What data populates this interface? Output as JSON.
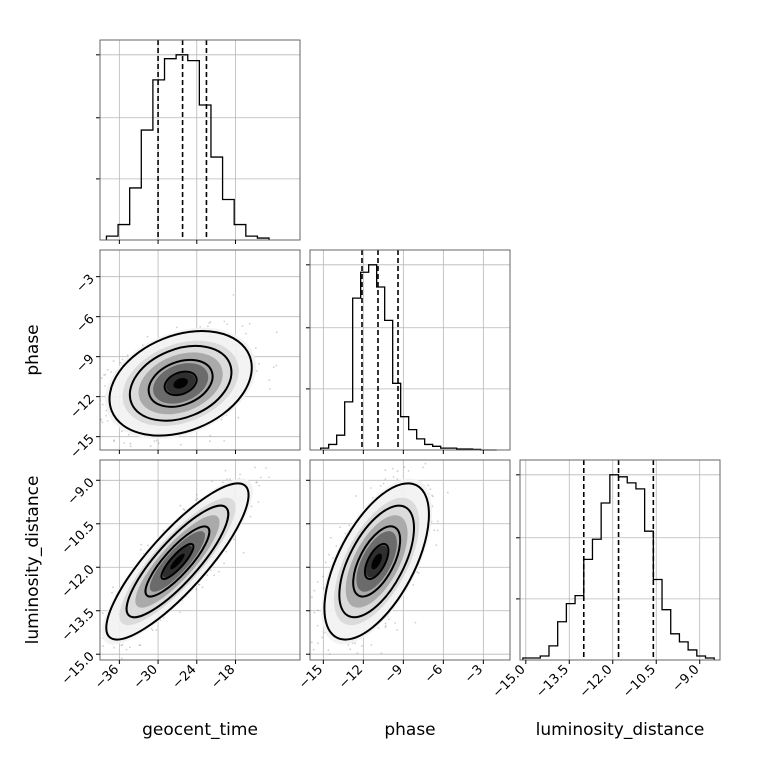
{
  "chart_data": {
    "type": "corner",
    "parameters": [
      "geocent_time",
      "phase",
      "luminosity_distance"
    ],
    "axes": {
      "geocent_time": {
        "range": [
          -39,
          -8
        ],
        "ticks": [
          -36,
          -30,
          -24,
          -18
        ],
        "tick_labels": [
          "−36",
          "−30",
          "−24",
          "−18"
        ]
      },
      "phase": {
        "range": [
          -16,
          -1
        ],
        "ticks": [
          -15,
          -12,
          -9,
          -6,
          -3
        ],
        "tick_labels": [
          "−15",
          "−12",
          "−9",
          "−6",
          "−3"
        ]
      },
      "luminosity_distance": {
        "range": [
          -15.2,
          -8.3
        ],
        "ticks": [
          -15.0,
          -13.5,
          -12.0,
          -10.5,
          -9.0
        ],
        "tick_labels": [
          "−15.0",
          "−13.5",
          "−12.0",
          "−10.5",
          "−9.0"
        ]
      }
    },
    "histograms": {
      "geocent_time": {
        "bin_edges": [
          -38,
          -36.2,
          -34.4,
          -32.6,
          -30.8,
          -29,
          -27.2,
          -25.4,
          -23.6,
          -21.8,
          -20,
          -18.2,
          -16.4,
          -14.6,
          -12.8
        ],
        "counts": [
          2,
          8,
          27,
          57,
          83,
          94,
          96,
          93,
          70,
          43,
          21,
          8,
          2,
          1
        ],
        "quantiles": [
          -30.0,
          -26.2,
          -22.5
        ]
      },
      "phase": {
        "bin_edges": [
          -15.2,
          -14.6,
          -14,
          -13.4,
          -12.8,
          -12.2,
          -11.6,
          -11,
          -10.4,
          -9.8,
          -9.2,
          -8.6,
          -8,
          -7.4,
          -6.8,
          -6.2,
          -5.6,
          -5,
          -4.4,
          -3.8,
          -3.2,
          -2.6,
          -2
        ],
        "counts": [
          1,
          3,
          8,
          26,
          82,
          96,
          100,
          88,
          70,
          36,
          18,
          11,
          6,
          3,
          2,
          1,
          1,
          0.5,
          0.5,
          0.3,
          0,
          0
        ],
        "quantiles": [
          -12.1,
          -10.9,
          -9.4
        ]
      },
      "luminosity_distance": {
        "bin_edges": [
          -15.1,
          -14.8,
          -14.5,
          -14.2,
          -13.9,
          -13.6,
          -13.3,
          -13.0,
          -12.7,
          -12.4,
          -12.1,
          -11.8,
          -11.5,
          -11.2,
          -10.9,
          -10.6,
          -10.3,
          -10.0,
          -9.7,
          -9.4,
          -9.1,
          -8.8,
          -8.5
        ],
        "counts": [
          1,
          1,
          2,
          7,
          19,
          28,
          32,
          50,
          60,
          78,
          92,
          91,
          88,
          85,
          64,
          40,
          25,
          13,
          9,
          5,
          2,
          1
        ],
        "quantiles": [
          -13.0,
          -11.8,
          -10.6
        ]
      }
    },
    "pairs": [
      {
        "x": "geocent_time",
        "y": "phase",
        "center": [
          -26.5,
          -11.0
        ],
        "sd": [
          4.5,
          1.6
        ],
        "corr": 0.3
      },
      {
        "x": "geocent_time",
        "y": "luminosity_distance",
        "center": [
          -27.0,
          -11.8
        ],
        "sd": [
          4.5,
          1.1
        ],
        "corr": 0.85
      },
      {
        "x": "phase",
        "y": "luminosity_distance",
        "center": [
          -11.0,
          -11.8
        ],
        "sd": [
          1.6,
          1.1
        ],
        "corr": 0.6
      }
    ],
    "xlabels": [
      "geocent_time",
      "phase",
      "luminosity_distance"
    ],
    "ylabels": [
      "",
      "phase",
      "luminosity_distance"
    ],
    "grid": true,
    "quantile_levels": [
      0.16,
      0.5,
      0.84
    ]
  }
}
